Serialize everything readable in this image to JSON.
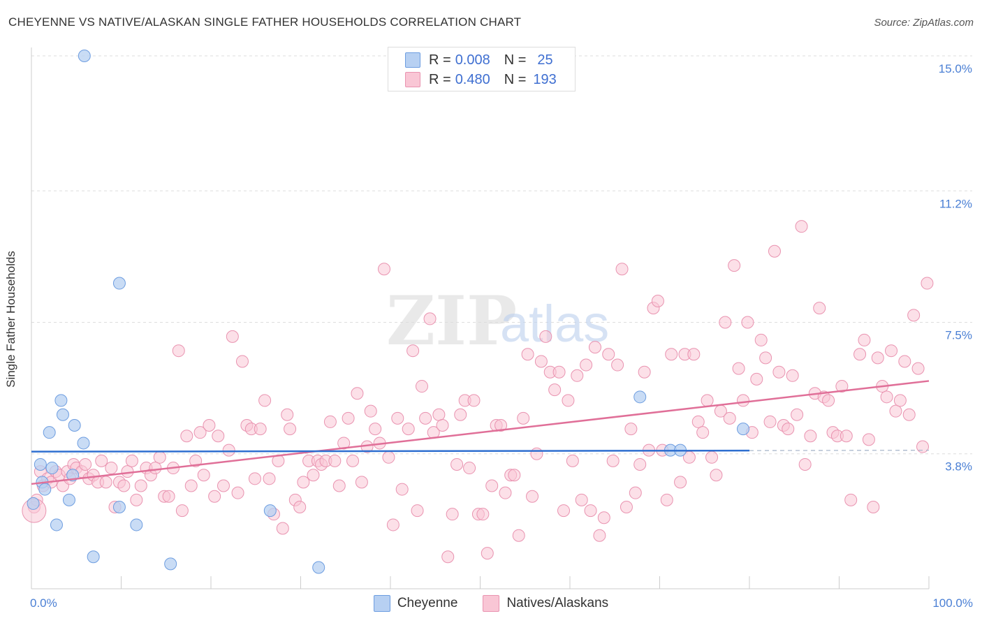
{
  "header": {
    "title": "CHEYENNE VS NATIVE/ALASKAN SINGLE FATHER HOUSEHOLDS CORRELATION CHART",
    "source": "Source: ZipAtlas.com"
  },
  "watermark": {
    "zip": "ZIP",
    "atlas": "atlas"
  },
  "legend": {
    "rows": [
      {
        "r_label": "R =",
        "r_value": "0.008",
        "n_label": "N =",
        "n_value": "25"
      },
      {
        "r_label": "R =",
        "r_value": "0.480",
        "n_label": "N =",
        "n_value": "193"
      }
    ]
  },
  "bottom_legend": {
    "series1": "Cheyenne",
    "series2": "Natives/Alaskans"
  },
  "colors": {
    "cheyenne_fill": "#b7d0f2",
    "cheyenne_stroke": "#6d9de0",
    "cheyenne_line": "#2f6fd0",
    "native_fill": "#f9c6d5",
    "native_stroke": "#e993b0",
    "native_line": "#e06f98",
    "tick_label": "#4a7fd4",
    "grid": "#dddddd"
  },
  "chart_data": {
    "type": "scatter",
    "title": "CHEYENNE VS NATIVE/ALASKAN SINGLE FATHER HOUSEHOLDS CORRELATION CHART",
    "xlabel": "",
    "ylabel": "Single Father Households",
    "xlim": [
      0,
      100
    ],
    "ylim": [
      0,
      15.5
    ],
    "x_tick_labels": [
      "0.0%",
      "100.0%"
    ],
    "y_ticks": [
      3.8,
      7.5,
      11.2,
      15.0
    ],
    "y_tick_labels": [
      "3.8%",
      "7.5%",
      "11.2%",
      "15.0%"
    ],
    "series": [
      {
        "name": "Cheyenne",
        "R": 0.008,
        "N": 25,
        "trend": {
          "x": [
            0,
            80
          ],
          "y": [
            3.86,
            3.89
          ],
          "dashed_to": 100,
          "dashed_y": 3.9
        },
        "points": [
          [
            0.2,
            2.4
          ],
          [
            1.0,
            3.5
          ],
          [
            1.2,
            3.0
          ],
          [
            1.5,
            2.8
          ],
          [
            2.0,
            4.4
          ],
          [
            2.3,
            3.4
          ],
          [
            2.8,
            1.8
          ],
          [
            3.3,
            5.3
          ],
          [
            3.5,
            4.9
          ],
          [
            4.2,
            2.5
          ],
          [
            4.6,
            3.2
          ],
          [
            4.8,
            4.6
          ],
          [
            5.8,
            4.1
          ],
          [
            5.9,
            15.0
          ],
          [
            6.9,
            0.9
          ],
          [
            9.8,
            8.6
          ],
          [
            9.8,
            2.3
          ],
          [
            11.7,
            1.8
          ],
          [
            15.5,
            0.7
          ],
          [
            26.6,
            2.2
          ],
          [
            32.0,
            0.6
          ],
          [
            67.8,
            5.4
          ],
          [
            71.2,
            3.9
          ],
          [
            72.3,
            3.9
          ],
          [
            79.3,
            4.5
          ]
        ]
      },
      {
        "name": "Natives/Alaskans",
        "R": 0.48,
        "N": 193,
        "trend": {
          "x": [
            0,
            100
          ],
          "y": [
            2.95,
            5.85
          ]
        },
        "points": [
          [
            0.3,
            2.3
          ],
          [
            0.6,
            2.5
          ],
          [
            1.0,
            3.3
          ],
          [
            1.3,
            2.9
          ],
          [
            1.8,
            3.1
          ],
          [
            2.2,
            3.0
          ],
          [
            2.7,
            3.3
          ],
          [
            3.1,
            3.2
          ],
          [
            3.5,
            2.9
          ],
          [
            4.0,
            3.3
          ],
          [
            4.3,
            3.1
          ],
          [
            4.7,
            3.5
          ],
          [
            5.0,
            3.4
          ],
          [
            5.6,
            3.3
          ],
          [
            6.0,
            3.5
          ],
          [
            6.4,
            3.1
          ],
          [
            6.9,
            3.2
          ],
          [
            7.4,
            3.0
          ],
          [
            7.8,
            3.6
          ],
          [
            8.3,
            3.0
          ],
          [
            8.9,
            3.4
          ],
          [
            9.3,
            2.3
          ],
          [
            9.8,
            3.0
          ],
          [
            10.3,
            2.9
          ],
          [
            10.7,
            3.3
          ],
          [
            11.2,
            3.6
          ],
          [
            11.7,
            2.5
          ],
          [
            12.2,
            2.9
          ],
          [
            12.8,
            3.4
          ],
          [
            13.3,
            3.2
          ],
          [
            13.8,
            3.4
          ],
          [
            14.3,
            3.7
          ],
          [
            14.8,
            2.6
          ],
          [
            15.3,
            2.6
          ],
          [
            15.8,
            3.4
          ],
          [
            16.4,
            6.7
          ],
          [
            16.8,
            2.2
          ],
          [
            17.3,
            4.3
          ],
          [
            17.8,
            2.9
          ],
          [
            18.3,
            3.6
          ],
          [
            18.8,
            4.4
          ],
          [
            19.2,
            3.2
          ],
          [
            19.8,
            4.6
          ],
          [
            20.4,
            2.6
          ],
          [
            20.8,
            4.3
          ],
          [
            21.4,
            2.9
          ],
          [
            22.0,
            3.9
          ],
          [
            22.4,
            7.1
          ],
          [
            23.0,
            2.7
          ],
          [
            23.5,
            6.4
          ],
          [
            24.0,
            4.6
          ],
          [
            24.5,
            4.5
          ],
          [
            24.9,
            3.1
          ],
          [
            25.5,
            4.5
          ],
          [
            26.0,
            5.3
          ],
          [
            26.5,
            3.1
          ],
          [
            27.0,
            2.1
          ],
          [
            27.5,
            3.6
          ],
          [
            28.0,
            1.7
          ],
          [
            28.5,
            4.9
          ],
          [
            28.8,
            4.5
          ],
          [
            29.4,
            2.5
          ],
          [
            29.9,
            2.3
          ],
          [
            30.3,
            3.0
          ],
          [
            30.9,
            3.6
          ],
          [
            31.4,
            3.2
          ],
          [
            31.9,
            3.6
          ],
          [
            32.3,
            3.5
          ],
          [
            32.8,
            3.6
          ],
          [
            33.3,
            4.7
          ],
          [
            33.8,
            3.6
          ],
          [
            34.3,
            2.9
          ],
          [
            34.8,
            4.1
          ],
          [
            35.3,
            4.8
          ],
          [
            35.8,
            3.6
          ],
          [
            36.3,
            5.5
          ],
          [
            36.8,
            3.0
          ],
          [
            37.4,
            4.0
          ],
          [
            37.8,
            5.0
          ],
          [
            38.3,
            4.5
          ],
          [
            38.8,
            4.1
          ],
          [
            39.3,
            9.0
          ],
          [
            39.8,
            3.7
          ],
          [
            40.3,
            1.8
          ],
          [
            40.8,
            4.8
          ],
          [
            41.3,
            2.8
          ],
          [
            42.0,
            4.5
          ],
          [
            42.5,
            6.7
          ],
          [
            43.0,
            2.2
          ],
          [
            43.5,
            5.7
          ],
          [
            43.9,
            4.8
          ],
          [
            44.4,
            7.6
          ],
          [
            44.8,
            4.4
          ],
          [
            45.4,
            4.9
          ],
          [
            45.8,
            4.6
          ],
          [
            46.4,
            0.9
          ],
          [
            46.9,
            2.1
          ],
          [
            47.4,
            3.5
          ],
          [
            47.8,
            4.9
          ],
          [
            48.3,
            5.3
          ],
          [
            48.8,
            3.4
          ],
          [
            49.3,
            5.3
          ],
          [
            49.8,
            2.1
          ],
          [
            50.3,
            2.1
          ],
          [
            50.8,
            1.0
          ],
          [
            51.3,
            2.9
          ],
          [
            51.8,
            4.6
          ],
          [
            52.3,
            4.6
          ],
          [
            52.8,
            2.7
          ],
          [
            53.4,
            3.2
          ],
          [
            53.8,
            3.2
          ],
          [
            54.3,
            1.5
          ],
          [
            54.8,
            4.8
          ],
          [
            55.3,
            6.6
          ],
          [
            55.8,
            2.6
          ],
          [
            56.3,
            3.8
          ],
          [
            56.8,
            6.4
          ],
          [
            57.3,
            7.1
          ],
          [
            57.8,
            6.1
          ],
          [
            58.3,
            5.6
          ],
          [
            58.8,
            6.1
          ],
          [
            59.3,
            2.2
          ],
          [
            59.8,
            5.3
          ],
          [
            60.3,
            3.6
          ],
          [
            60.8,
            6.0
          ],
          [
            61.3,
            2.5
          ],
          [
            61.8,
            6.3
          ],
          [
            62.3,
            2.2
          ],
          [
            62.8,
            6.8
          ],
          [
            63.3,
            1.5
          ],
          [
            63.8,
            2.0
          ],
          [
            64.3,
            6.6
          ],
          [
            64.8,
            3.6
          ],
          [
            65.3,
            6.3
          ],
          [
            65.8,
            9.0
          ],
          [
            66.3,
            2.3
          ],
          [
            66.8,
            4.5
          ],
          [
            67.3,
            2.7
          ],
          [
            67.8,
            3.5
          ],
          [
            68.3,
            6.1
          ],
          [
            68.8,
            3.9
          ],
          [
            69.3,
            7.9
          ],
          [
            69.8,
            8.1
          ],
          [
            70.3,
            3.9
          ],
          [
            70.8,
            2.5
          ],
          [
            71.3,
            6.6
          ],
          [
            72.3,
            3.0
          ],
          [
            72.8,
            6.6
          ],
          [
            73.3,
            3.7
          ],
          [
            73.8,
            6.6
          ],
          [
            74.3,
            4.7
          ],
          [
            74.8,
            4.4
          ],
          [
            75.3,
            5.3
          ],
          [
            75.8,
            3.7
          ],
          [
            76.3,
            3.2
          ],
          [
            76.8,
            5.0
          ],
          [
            77.3,
            7.5
          ],
          [
            77.8,
            4.8
          ],
          [
            78.3,
            9.1
          ],
          [
            78.8,
            6.2
          ],
          [
            79.3,
            5.3
          ],
          [
            79.8,
            7.5
          ],
          [
            80.3,
            4.4
          ],
          [
            80.8,
            5.9
          ],
          [
            81.3,
            7.0
          ],
          [
            81.8,
            6.5
          ],
          [
            82.3,
            4.7
          ],
          [
            82.8,
            9.5
          ],
          [
            83.3,
            6.1
          ],
          [
            83.8,
            4.6
          ],
          [
            84.3,
            4.5
          ],
          [
            84.8,
            6.0
          ],
          [
            85.3,
            4.9
          ],
          [
            85.8,
            10.2
          ],
          [
            86.2,
            3.5
          ],
          [
            86.8,
            4.3
          ],
          [
            87.3,
            5.5
          ],
          [
            87.8,
            7.9
          ],
          [
            88.3,
            5.4
          ],
          [
            88.8,
            5.3
          ],
          [
            89.3,
            4.4
          ],
          [
            89.8,
            4.3
          ],
          [
            90.3,
            5.7
          ],
          [
            90.8,
            4.3
          ],
          [
            91.3,
            2.5
          ],
          [
            92.3,
            6.6
          ],
          [
            92.8,
            7.0
          ],
          [
            93.3,
            4.2
          ],
          [
            93.8,
            2.3
          ],
          [
            94.3,
            6.5
          ],
          [
            94.8,
            5.7
          ],
          [
            95.3,
            5.4
          ],
          [
            95.8,
            6.7
          ],
          [
            96.3,
            5.0
          ],
          [
            96.8,
            5.3
          ],
          [
            97.3,
            6.4
          ],
          [
            97.8,
            4.9
          ],
          [
            98.3,
            7.7
          ],
          [
            98.8,
            6.2
          ],
          [
            99.3,
            4.0
          ],
          [
            99.8,
            8.6
          ]
        ]
      }
    ]
  }
}
